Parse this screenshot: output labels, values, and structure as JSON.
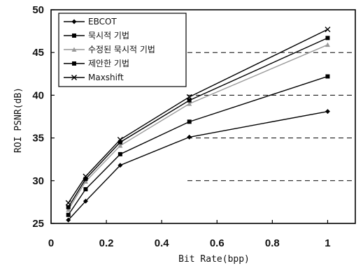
{
  "chart_data": {
    "type": "line",
    "xlabel": "Bit Rate(bpp)",
    "ylabel": "ROI PSNR(dB)",
    "xlim": [
      0,
      1.1
    ],
    "ylim": [
      25,
      50
    ],
    "xticks": [
      0,
      0.2,
      0.4,
      0.6,
      0.8,
      1
    ],
    "xtick_labels": [
      "0",
      "0.2",
      "0.4",
      "0.6",
      "0.8",
      "1"
    ],
    "yticks": [
      25,
      30,
      35,
      40,
      45,
      50
    ],
    "ytick_labels": [
      "25",
      "30",
      "35",
      "40",
      "45",
      "50"
    ],
    "grid": "horizontal dashed at 30, 35, 40, 45",
    "legend_position": "top-left",
    "x": [
      0.0625,
      0.125,
      0.25,
      0.5,
      1.0
    ],
    "series": [
      {
        "name": "EBCOT",
        "marker": "diamond",
        "color": "#000000",
        "values": [
          25.4,
          27.6,
          31.8,
          35.1,
          38.1
        ]
      },
      {
        "name": "묵시적 기법",
        "marker": "square",
        "color": "#000000",
        "values": [
          26.0,
          29.0,
          33.1,
          36.9,
          42.2
        ]
      },
      {
        "name": "수정된 묵시적 기법",
        "marker": "triangle",
        "color": "#999999",
        "values": [
          26.6,
          29.9,
          34.1,
          39.0,
          45.9
        ]
      },
      {
        "name": "제안한 기법",
        "marker": "square",
        "color": "#000000",
        "values": [
          26.9,
          30.2,
          34.5,
          39.4,
          46.7
        ]
      },
      {
        "name": "Maxshift",
        "marker": "x",
        "color": "#000000",
        "values": [
          27.4,
          30.5,
          34.8,
          39.8,
          47.7
        ]
      }
    ]
  }
}
